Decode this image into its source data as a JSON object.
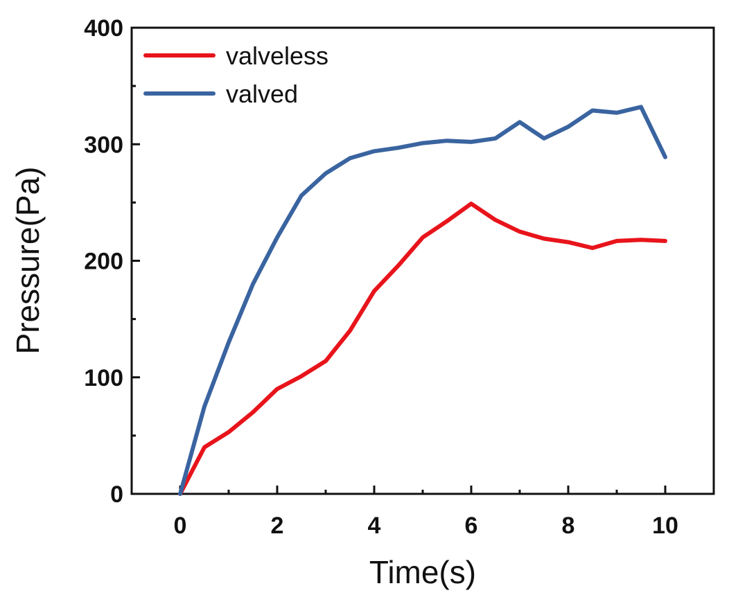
{
  "chart_data": {
    "type": "line",
    "title": "",
    "xlabel": "Time(s)",
    "ylabel": "Pressure(Pa)",
    "xlim": [
      -1,
      11
    ],
    "ylim": [
      0,
      400
    ],
    "xticks": [
      0,
      2,
      4,
      6,
      8,
      10
    ],
    "yticks": [
      0,
      100,
      200,
      300,
      400
    ],
    "x_minor_step": 1,
    "y_minor_step": 50,
    "grid": false,
    "legend_position": "top-left",
    "x": [
      0,
      0.5,
      1,
      1.5,
      2,
      2.5,
      3,
      3.5,
      4,
      4.5,
      5,
      5.5,
      6,
      6.5,
      7,
      7.5,
      8,
      8.5,
      9,
      9.5,
      10
    ],
    "series": [
      {
        "name": "valveless",
        "color": "#e8141b",
        "values": [
          0,
          40,
          53,
          70,
          90,
          101,
          114,
          140,
          174,
          196,
          220,
          234,
          249,
          235,
          225,
          219,
          216,
          211,
          217,
          218,
          217
        ]
      },
      {
        "name": "valved",
        "color": "#3a64a0",
        "values": [
          0,
          75,
          130,
          180,
          220,
          256,
          275,
          288,
          294,
          297,
          301,
          303,
          302,
          305,
          319,
          305,
          315,
          329,
          327,
          332,
          289
        ]
      }
    ]
  }
}
